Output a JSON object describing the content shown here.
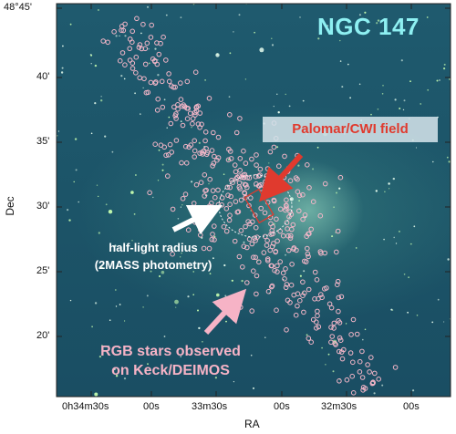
{
  "figure": {
    "title": "NGC 147",
    "axis_labels": {
      "x": "RA",
      "y": "Dec"
    },
    "y_ticks": [
      "48°45'",
      "40'",
      "35'",
      "30'",
      "25'",
      "20'"
    ],
    "x_ticks": [
      "0h34m30s",
      "00s",
      "33m30s",
      "00s",
      "32m30s",
      "00s"
    ],
    "annotations": {
      "cwi_field": "Palomar/CWI field",
      "half_light_line1": "half-light radius",
      "half_light_line2": "(2MASS photometry)",
      "rgb_line1": "RGB stars observed",
      "rgb_line2": "on Keck/DEIMOS"
    },
    "colors": {
      "title": "#8ef0f2",
      "cwi_arrow": "#e03a2e",
      "half_light_arrow": "#ffffff",
      "rgb_arrow": "#f6b3c6",
      "star_markers": "#f4b6c8"
    }
  }
}
